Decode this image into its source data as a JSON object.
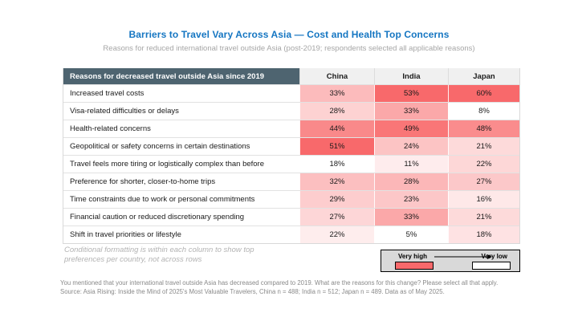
{
  "chart_data": {
    "type": "heatmap",
    "title": "Barriers to Travel Vary Across Asia — Cost and Health Top Concerns",
    "subtitle": "Reasons for reduced international travel outside Asia (post-2019; respondents selected all applicable reasons)",
    "row_header": "Reasons for decreased travel outside Asia since 2019",
    "columns": [
      "China",
      "India",
      "Japan"
    ],
    "rows": [
      "Increased travel costs",
      "Visa-related difficulties or delays",
      "Health-related concerns",
      "Geopolitical or safety concerns in certain destinations",
      "Travel feels more tiring or logistically complex than before",
      "Preference for shorter, closer-to-home trips",
      "Time constraints due to work or personal commitments",
      "Financial caution or reduced discretionary spending",
      "Shift in travel priorities or lifestyle"
    ],
    "values": [
      [
        33,
        53,
        60
      ],
      [
        28,
        33,
        8
      ],
      [
        44,
        49,
        48
      ],
      [
        51,
        24,
        21
      ],
      [
        18,
        11,
        22
      ],
      [
        32,
        28,
        27
      ],
      [
        29,
        23,
        16
      ],
      [
        27,
        33,
        21
      ],
      [
        22,
        5,
        18
      ]
    ],
    "unit": "%",
    "color_scale": {
      "low": "#FFFFFF",
      "high": "#F8696B",
      "scope": "per_column"
    }
  },
  "note": "Conditional formatting is within each column to show top preferences per country, not across rows",
  "legend": {
    "high_label": "Very high",
    "low_label": "Very low",
    "high_color": "#F8696B",
    "low_color": "#FFFFFF"
  },
  "footnotes": [
    "You mentioned that your international travel outside Asia has decreased compared to 2019. What are the reasons for this change? Please select all that apply.",
    "Source: Asia Rising: Inside the Mind of 2025's Most Valuable Travelers, China n = 488; India n = 512; Japan n = 489. Data as of May 2025."
  ],
  "colors": {
    "title_blue": "#1576C2",
    "row_header_bg": "#4E6470",
    "column_header_bg": "#F0F0F0",
    "legend_box_bg": "#D9D9D9"
  }
}
